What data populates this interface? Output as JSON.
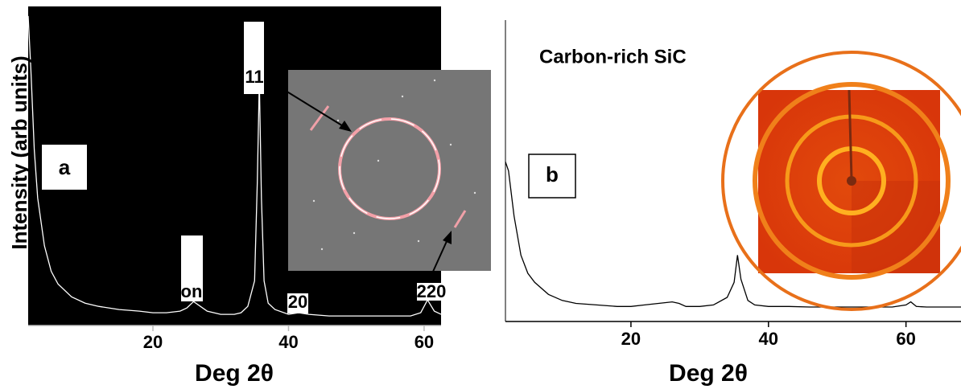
{
  "chart_data": [
    {
      "type": "line",
      "x_label": "Deg 2θ",
      "y_label": "Intensity (arb units)",
      "annotations": [
        "a",
        "11",
        "on",
        "20",
        "220"
      ],
      "background": "#000000",
      "color": "#ffffff",
      "xlim": [
        1.6,
        62.5
      ],
      "xticks": [
        20,
        40,
        60
      ],
      "ylim": [
        0,
        100
      ],
      "x": [
        1.6,
        2,
        2.5,
        3,
        4,
        5,
        6,
        8,
        10,
        12,
        15,
        18,
        20,
        22,
        24,
        25,
        26,
        27,
        28,
        30,
        32,
        33,
        34,
        35,
        35.4,
        35.7,
        36,
        36.4,
        37,
        38,
        40,
        41.5,
        43,
        46,
        50,
        54,
        58,
        59.5,
        60.5,
        61.5,
        62.5
      ],
      "values": [
        97,
        80,
        55,
        40,
        25,
        17,
        13,
        9,
        7,
        6,
        5,
        4.5,
        4,
        4,
        4.5,
        5.5,
        7.5,
        6,
        4.5,
        3.5,
        3.5,
        4,
        6,
        14,
        45,
        77,
        40,
        14,
        7,
        5,
        3.5,
        4,
        3.5,
        3,
        3,
        3,
        3,
        4,
        8,
        4.5,
        3.5
      ]
    },
    {
      "type": "line",
      "title": "Carbon-rich SiC",
      "x_label": "Deg 2θ",
      "annotations": [
        "b"
      ],
      "background": "#ffffff",
      "color": "#000000",
      "xlim": [
        1.75,
        68
      ],
      "xticks": [
        20,
        40,
        60
      ],
      "ylim": [
        0,
        100
      ],
      "x": [
        1.75,
        2.2,
        3,
        4,
        5,
        6,
        8,
        10,
        12,
        15,
        18,
        20,
        22,
        24,
        26,
        27,
        28,
        30,
        32,
        34,
        35,
        35.5,
        36,
        37,
        38,
        40,
        43,
        46,
        50,
        54,
        58,
        60,
        60.7,
        61.5,
        63,
        66,
        68
      ],
      "values": [
        53,
        50,
        35,
        22,
        16,
        13,
        9,
        7,
        6,
        5.5,
        5,
        5,
        5.5,
        6,
        6.5,
        6,
        5,
        5,
        5.5,
        8,
        13,
        22,
        14,
        7,
        5.5,
        5,
        5,
        4.8,
        4.8,
        4.8,
        4.8,
        5.5,
        6.5,
        5,
        4.8,
        4.8,
        4.8
      ]
    }
  ]
}
